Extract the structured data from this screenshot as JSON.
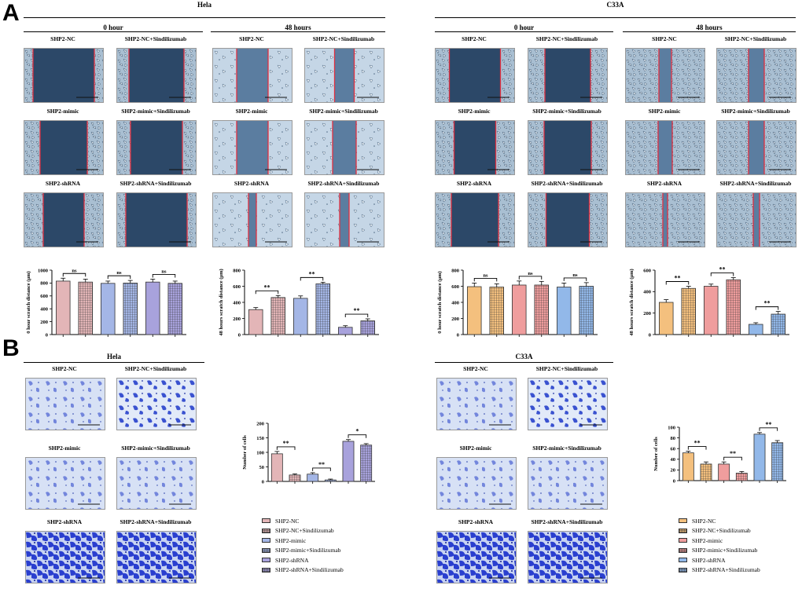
{
  "panels": {
    "a": "A",
    "b": "B"
  },
  "scratch": {
    "hela": {
      "title": "Hela",
      "time0": "0 hour",
      "time48": "48 hours",
      "labels": [
        "SHP2-NC",
        "SHP2-NC+Sindilizumab",
        "SHP2-mimic",
        "SHP2-mimic+Sindilizumab",
        "SHP2-shRNA",
        "SHP2-shRNA+Sindilizumab"
      ]
    },
    "c33a": {
      "title": "C33A",
      "time0": "0 hour",
      "time48": "48 hours",
      "labels": [
        "SHP2-NC",
        "SHP2-NC+Sindilizumab",
        "SHP2-mimic",
        "SHP2-mimic+Sindilizumab",
        "SHP2-shRNA",
        "SHP2-shRNA+Sindilizumab"
      ]
    }
  },
  "transwell": {
    "hela": {
      "title": "Hela",
      "labels": [
        "SHP2-NC",
        "SHP2-NC+Sindilizumab",
        "SHP2-mimic",
        "SHP2-mimic+Sindilizumab",
        "SHP2-shRNA",
        "SHP2-shRNA+Sindilizumab"
      ]
    },
    "c33a": {
      "title": "C33A",
      "labels": [
        "SHP2-NC",
        "SHP2-NC+Sindilizumab",
        "SHP2-mimic",
        "SHP2-mimic+Sindilizumab",
        "SHP2-shRNA",
        "SHP2-shRNA+Sindilizumab"
      ]
    }
  },
  "legend_hela": [
    "SHP2-NC",
    "SHP2-NC+Sindilizumab",
    "SHP2-mimic",
    "SHP2-mimic+Sindilizumab",
    "SHP2-shRNA",
    "SHP2-shRNA+Sindilizumab"
  ],
  "legend_c33a": [
    "SHP2-NC",
    "SHP2-NC+Sindilizumab",
    "SHP2-mimic",
    "SHP2-mimic+Sindilizumab",
    "SHP2-shRNA",
    "SHP2-shRNA+Sindilizumab"
  ],
  "colors": {
    "hela_fill": [
      "#e3b5b7",
      "#e3b5b7",
      "#a4b6e6",
      "#a4b6e6",
      "#a8a2dc",
      "#a8a2dc"
    ],
    "c33a_fill": [
      "#f4c07e",
      "#f4c07e",
      "#ef9d9d",
      "#ef9d9d",
      "#92b8e9",
      "#92b8e9"
    ],
    "scratch_bg": "#2c4868",
    "wound_line": "#e03040",
    "transwell_stain": "#3346c8"
  },
  "chart_data": [
    {
      "id": "hela-0h",
      "type": "bar",
      "title": "",
      "ylabel": "0 hour scratch distance (μm)",
      "ylim": [
        0,
        1000
      ],
      "yticks": [
        0,
        200,
        400,
        600,
        800,
        1000
      ],
      "categories": [
        "SHP2-NC",
        "SHP2-NC+Sindilizumab",
        "SHP2-mimic",
        "SHP2-mimic+Sindilizumab",
        "SHP2-shRNA",
        "SHP2-shRNA+Sindilizumab"
      ],
      "values": [
        830,
        815,
        795,
        800,
        815,
        795
      ],
      "errors": [
        45,
        45,
        35,
        40,
        45,
        35
      ],
      "annotations": [
        {
          "pair": [
            0,
            1
          ],
          "label": "ns"
        },
        {
          "pair": [
            2,
            3
          ],
          "label": "ns"
        },
        {
          "pair": [
            4,
            5
          ],
          "label": "ns"
        }
      ]
    },
    {
      "id": "hela-48h",
      "type": "bar",
      "title": "",
      "ylabel": "48 hours scratch distance (μm)",
      "ylim": [
        0,
        800
      ],
      "yticks": [
        0,
        200,
        400,
        600,
        800
      ],
      "categories": [
        "SHP2-NC",
        "SHP2-NC+Sindilizumab",
        "SHP2-mimic",
        "SHP2-mimic+Sindilizumab",
        "SHP2-shRNA",
        "SHP2-shRNA+Sindilizumab"
      ],
      "values": [
        310,
        460,
        450,
        630,
        90,
        170
      ],
      "errors": [
        25,
        25,
        30,
        20,
        20,
        25
      ],
      "annotations": [
        {
          "pair": [
            0,
            1
          ],
          "label": "**"
        },
        {
          "pair": [
            2,
            3
          ],
          "label": "**"
        },
        {
          "pair": [
            4,
            5
          ],
          "label": "**"
        }
      ]
    },
    {
      "id": "c33a-0h",
      "type": "bar",
      "title": "",
      "ylabel": "0 hour scratch distance (μm)",
      "ylim": [
        0,
        800
      ],
      "yticks": [
        0,
        200,
        400,
        600,
        800
      ],
      "categories": [
        "SHP2-NC",
        "SHP2-NC+Sindilizumab",
        "SHP2-mimic",
        "SHP2-mimic+Sindilizumab",
        "SHP2-shRNA",
        "SHP2-shRNA+Sindilizumab"
      ],
      "values": [
        595,
        590,
        615,
        615,
        590,
        600
      ],
      "errors": [
        45,
        40,
        50,
        45,
        50,
        45
      ],
      "annotations": [
        {
          "pair": [
            0,
            1
          ],
          "label": "ns"
        },
        {
          "pair": [
            2,
            3
          ],
          "label": "ns"
        },
        {
          "pair": [
            4,
            5
          ],
          "label": "ns"
        }
      ]
    },
    {
      "id": "c33a-48h",
      "type": "bar",
      "title": "",
      "ylabel": "48 hours scratch distance (μm)",
      "ylim": [
        0,
        600
      ],
      "yticks": [
        0,
        200,
        400,
        600
      ],
      "categories": [
        "SHP2-NC",
        "SHP2-NC+Sindilizumab",
        "SHP2-mimic",
        "SHP2-mimic+Sindilizumab",
        "SHP2-shRNA",
        "SHP2-shRNA+Sindilizumab"
      ],
      "values": [
        300,
        430,
        450,
        510,
        95,
        190
      ],
      "errors": [
        25,
        20,
        20,
        20,
        15,
        25
      ],
      "annotations": [
        {
          "pair": [
            0,
            1
          ],
          "label": "**"
        },
        {
          "pair": [
            2,
            3
          ],
          "label": "**"
        },
        {
          "pair": [
            4,
            5
          ],
          "label": "**"
        }
      ]
    },
    {
      "id": "hela-cells",
      "type": "bar",
      "title": "",
      "ylabel": "Number of cells",
      "ylim": [
        0,
        200
      ],
      "yticks": [
        0,
        50,
        100,
        150,
        200
      ],
      "categories": [
        "SHP2-NC",
        "SHP2-NC+Sindilizumab",
        "SHP2-mimic",
        "SHP2-mimic+Sindilizumab",
        "SHP2-shRNA",
        "SHP2-shRNA+Sindilizumab"
      ],
      "values": [
        95,
        22,
        25,
        5,
        138,
        125
      ],
      "errors": [
        8,
        4,
        5,
        3,
        6,
        5
      ],
      "annotations": [
        {
          "pair": [
            0,
            1
          ],
          "label": "**"
        },
        {
          "pair": [
            2,
            3
          ],
          "label": "**"
        },
        {
          "pair": [
            4,
            5
          ],
          "label": "*"
        }
      ]
    },
    {
      "id": "c33a-cells",
      "type": "bar",
      "title": "",
      "ylabel": "Number of cells",
      "ylim": [
        0,
        100
      ],
      "yticks": [
        0,
        20,
        40,
        60,
        80,
        100
      ],
      "categories": [
        "SHP2-NC",
        "SHP2-NC+Sindilizumab",
        "SHP2-mimic",
        "SHP2-mimic+Sindilizumab",
        "SHP2-shRNA",
        "SHP2-shRNA+Sindilizumab"
      ],
      "values": [
        52,
        31,
        31,
        14,
        87,
        71
      ],
      "errors": [
        3,
        4,
        4,
        3,
        3,
        4
      ],
      "annotations": [
        {
          "pair": [
            0,
            1
          ],
          "label": "**"
        },
        {
          "pair": [
            2,
            3
          ],
          "label": "**"
        },
        {
          "pair": [
            4,
            5
          ],
          "label": "**"
        }
      ]
    }
  ]
}
